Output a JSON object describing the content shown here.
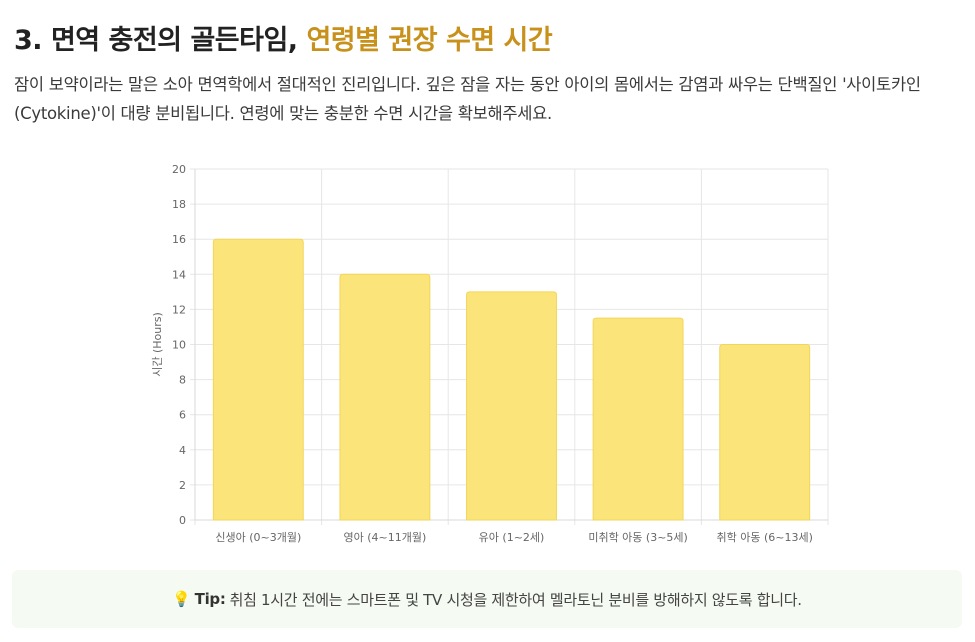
{
  "header": {
    "title_main": "3. 면역 충전의 골든타임, ",
    "title_accent": "연령별 권장 수면 시간",
    "paragraph": "잠이 보약이라는 말은 소아 면역학에서 절대적인 진리입니다. 깊은 잠을 자는 동안 아이의 몸에서는 감염과 싸우는 단백질인 '사이토카인(Cytokine)'이 대량 분비됩니다. 연령에 맞는 충분한 수면 시간을 확보해주세요."
  },
  "colors": {
    "accent": "#c8911c",
    "bar_fill": "#fbe57a",
    "bar_border": "#f2d65a",
    "grid": "#e6e6e6",
    "tip_bg": "#f5fbf2"
  },
  "chart_data": {
    "type": "bar",
    "categories": [
      "신생아 (0~3개월)",
      "영아 (4~11개월)",
      "유아 (1~2세)",
      "미취학 아동 (3~5세)",
      "취학 아동 (6~13세)"
    ],
    "values": [
      16,
      14,
      13,
      11.5,
      10
    ],
    "ylabel": "시간 (Hours)",
    "xlabel": "",
    "ylim": [
      0,
      20
    ],
    "yticks": [
      0,
      2,
      4,
      6,
      8,
      10,
      12,
      14,
      16,
      18,
      20
    ],
    "grid": true,
    "legend": "none"
  },
  "tip": {
    "icon": "lightbulb-icon",
    "label": "Tip:",
    "text": "취침 1시간 전에는 스마트폰 및 TV 시청을 제한하여 멜라토닌 분비를 방해하지 않도록 합니다."
  }
}
